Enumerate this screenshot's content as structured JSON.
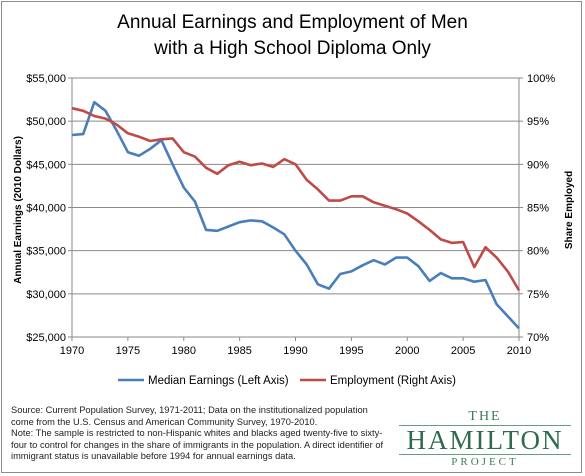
{
  "title": "Annual Earnings and Employment of Men\nwith a High School Diploma Only",
  "source_note": "Source: Current Population Survey, 1971-2011; Data on the institutionalized population come from the U.S. Census and American Community Survey, 1970-2010.\nNote: The sample is restricted to non-Hispanic whites and blacks aged twenty-five to sixty-four to control for changes in the share of immigrants in the population. A direct identifier of immigrant status is unavailable before 1994 for annual earnings data.",
  "logo": {
    "the": "THE",
    "main": "HAMILTON",
    "project": "PROJECT"
  },
  "colors": {
    "earnings": "#4a7ebb",
    "employment": "#be4b48",
    "logo": "#2e6b4f"
  },
  "chart_data": {
    "type": "line",
    "title": "Annual Earnings and Employment of Men with a High School Diploma Only",
    "xlim": [
      1970,
      2010
    ],
    "xticks": [
      1970,
      1975,
      1980,
      1985,
      1990,
      1995,
      2000,
      2005,
      2010
    ],
    "y_left": {
      "label": "Annual Earnings (2010 Dollars)",
      "lim": [
        25000,
        55000
      ],
      "ticks": [
        25000,
        30000,
        35000,
        40000,
        45000,
        50000,
        55000
      ],
      "tick_labels": [
        "$25,000",
        "$30,000",
        "$35,000",
        "$40,000",
        "$45,000",
        "$50,000",
        "$55,000"
      ]
    },
    "y_right": {
      "label": "Share Employed",
      "lim": [
        70,
        100
      ],
      "ticks": [
        70,
        75,
        80,
        85,
        90,
        95,
        100
      ],
      "tick_labels": [
        "70%",
        "75%",
        "80%",
        "85%",
        "90%",
        "95%",
        "100%"
      ]
    },
    "grid": "horizontal",
    "legend_position": "bottom",
    "series": [
      {
        "name": "Median Earnings (Left Axis)",
        "axis": "left",
        "x": [
          1970,
          1971,
          1972,
          1973,
          1974,
          1975,
          1976,
          1977,
          1978,
          1979,
          1980,
          1981,
          1982,
          1983,
          1984,
          1985,
          1986,
          1987,
          1988,
          1989,
          1990,
          1991,
          1992,
          1993,
          1994,
          1995,
          1996,
          1997,
          1998,
          1999,
          2000,
          2001,
          2002,
          2003,
          2004,
          2005,
          2006,
          2007,
          2008,
          2009,
          2010
        ],
        "values": [
          48400,
          48500,
          52200,
          51200,
          48900,
          46400,
          46000,
          46800,
          47800,
          45000,
          42300,
          40700,
          37400,
          37300,
          37800,
          38300,
          38500,
          38400,
          37700,
          36900,
          35000,
          33400,
          31100,
          30600,
          32300,
          32600,
          33300,
          33900,
          33400,
          34200,
          34200,
          33200,
          31500,
          32400,
          31800,
          31800,
          31400,
          31600,
          28800,
          27400,
          26000
        ]
      },
      {
        "name": "Employment (Right Axis)",
        "axis": "right",
        "x": [
          1970,
          1971,
          1972,
          1973,
          1974,
          1975,
          1976,
          1977,
          1978,
          1979,
          1980,
          1981,
          1982,
          1983,
          1984,
          1985,
          1986,
          1987,
          1988,
          1989,
          1990,
          1991,
          1992,
          1993,
          1994,
          1995,
          1996,
          1997,
          1998,
          1999,
          2000,
          2001,
          2002,
          2003,
          2004,
          2005,
          2006,
          2007,
          2008,
          2009,
          2010
        ],
        "values": [
          96.5,
          96.2,
          95.6,
          95.3,
          94.6,
          93.6,
          93.2,
          92.7,
          92.9,
          93.0,
          91.4,
          90.9,
          89.6,
          88.9,
          89.9,
          90.3,
          89.9,
          90.1,
          89.7,
          90.6,
          90.0,
          88.2,
          87.1,
          85.8,
          85.8,
          86.3,
          86.3,
          85.6,
          85.2,
          84.8,
          84.3,
          83.4,
          82.4,
          81.3,
          80.9,
          81.0,
          78.1,
          80.4,
          79.2,
          77.6,
          75.4
        ]
      }
    ]
  }
}
